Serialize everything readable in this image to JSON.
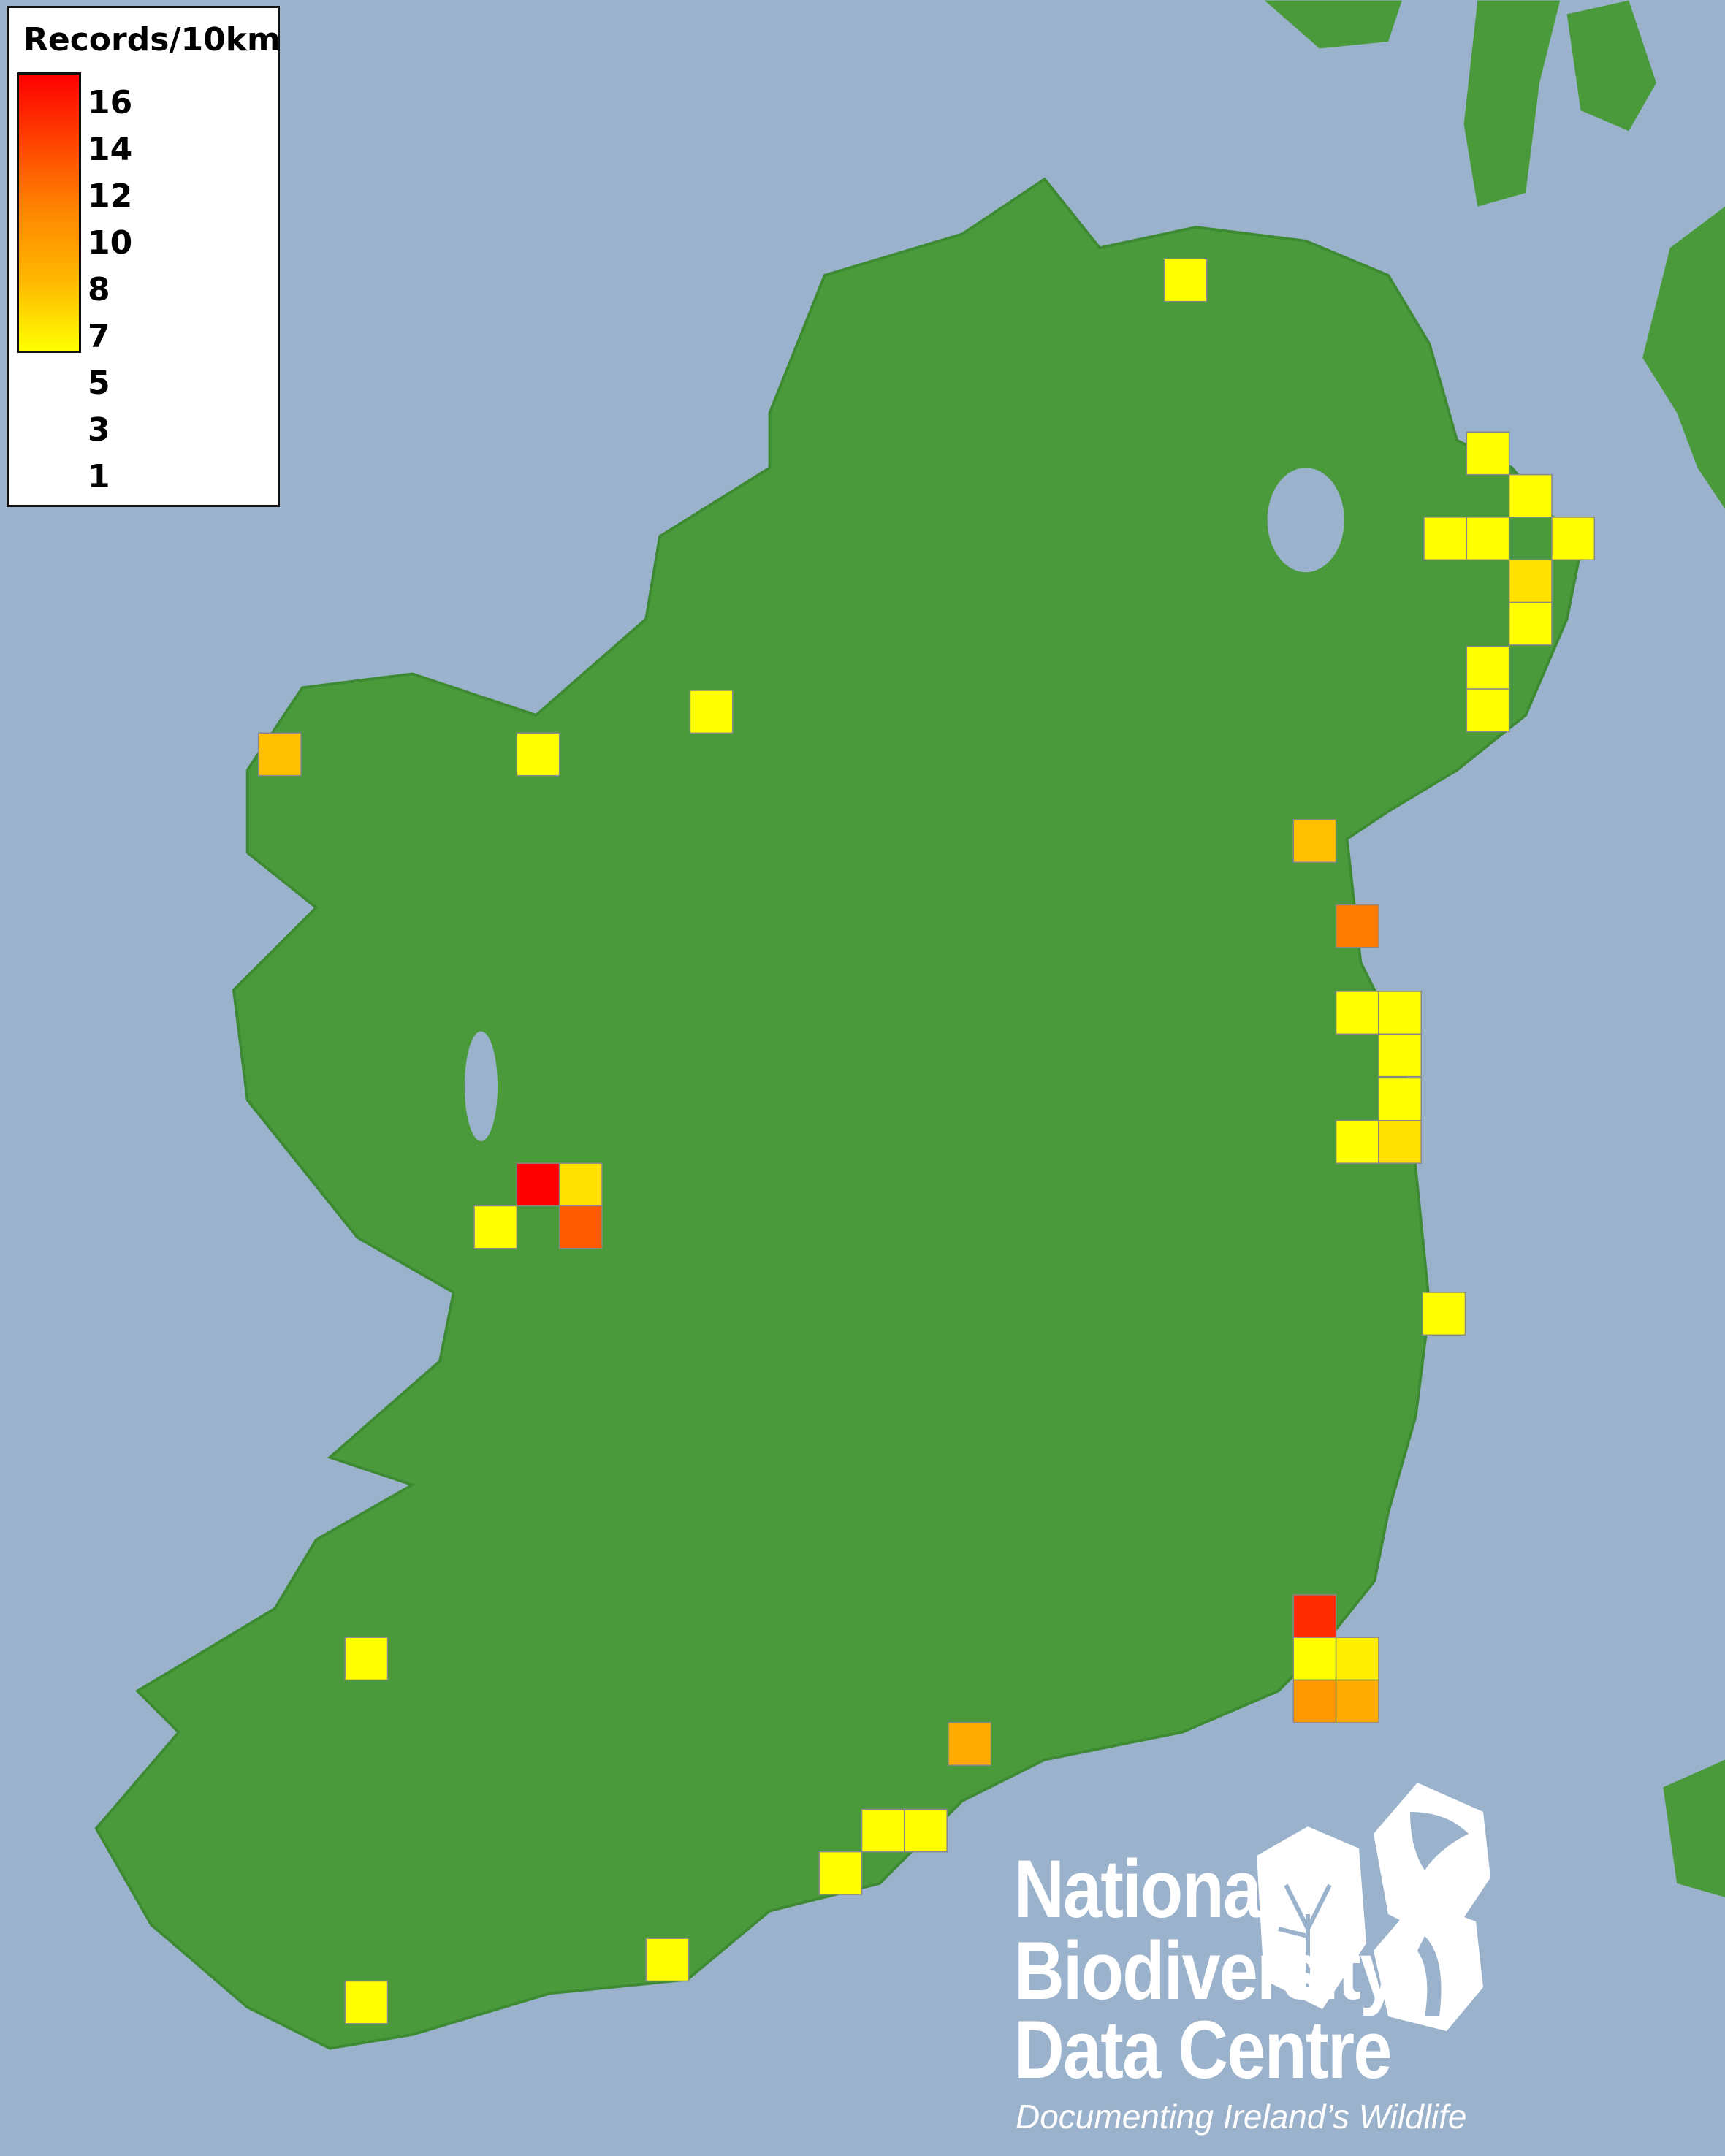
{
  "legend": {
    "title": "Records/10km",
    "ticks": [
      "16",
      "14",
      "12",
      "10",
      "8",
      "7",
      "5",
      "3",
      "1"
    ],
    "color_low": "#ffff00",
    "color_high": "#ff0000"
  },
  "map": {
    "sea_color": "#9ab2cc",
    "land_color": "#4a9a3c",
    "grid_squares": [
      {
        "row": "north-coast",
        "value": 1,
        "color": "#ffff00"
      },
      {
        "row": "antrim",
        "value": 1,
        "color": "#ffff00"
      },
      {
        "row": "antrim",
        "value": 1,
        "color": "#ffff00"
      },
      {
        "row": "belfast",
        "value": 1,
        "color": "#ffff00"
      },
      {
        "row": "belfast",
        "value": 1,
        "color": "#ffff00"
      },
      {
        "row": "belfast",
        "value": 1,
        "color": "#ffff00"
      },
      {
        "row": "down",
        "value": 3,
        "color": "#ffe000"
      },
      {
        "row": "down",
        "value": 1,
        "color": "#ffff00"
      },
      {
        "row": "down",
        "value": 1,
        "color": "#ffff00"
      },
      {
        "row": "down",
        "value": 1,
        "color": "#ffff00"
      },
      {
        "row": "mayo-west",
        "value": 5,
        "color": "#ffc000"
      },
      {
        "row": "mayo-north",
        "value": 1,
        "color": "#ffff00"
      },
      {
        "row": "sligo",
        "value": 1,
        "color": "#ffff00"
      },
      {
        "row": "louth",
        "value": 5,
        "color": "#ffc000"
      },
      {
        "row": "louth",
        "value": 9,
        "color": "#ff7a00"
      },
      {
        "row": "dublin",
        "value": 1,
        "color": "#ffff00"
      },
      {
        "row": "dublin",
        "value": 1,
        "color": "#ffff00"
      },
      {
        "row": "dublin",
        "value": 1,
        "color": "#ffff00"
      },
      {
        "row": "dublin",
        "value": 1,
        "color": "#ffff00"
      },
      {
        "row": "dublin",
        "value": 1,
        "color": "#ffff00"
      },
      {
        "row": "dublin",
        "value": 3,
        "color": "#ffe000"
      },
      {
        "row": "galway",
        "value": 16,
        "color": "#ff0000"
      },
      {
        "row": "galway",
        "value": 3,
        "color": "#ffe000"
      },
      {
        "row": "galway",
        "value": 1,
        "color": "#ffff00"
      },
      {
        "row": "galway",
        "value": 11,
        "color": "#ff5a00"
      },
      {
        "row": "wicklow",
        "value": 1,
        "color": "#ffff00"
      },
      {
        "row": "wexford",
        "value": 14,
        "color": "#ff2a00"
      },
      {
        "row": "wexford",
        "value": 1,
        "color": "#ffff00"
      },
      {
        "row": "wexford",
        "value": 2,
        "color": "#ffee00"
      },
      {
        "row": "wexford",
        "value": 7,
        "color": "#ff9800"
      },
      {
        "row": "wexford",
        "value": 6,
        "color": "#ffaa00"
      },
      {
        "row": "waterford",
        "value": 6,
        "color": "#ffaa00"
      },
      {
        "row": "kerry",
        "value": 1,
        "color": "#ffff00"
      },
      {
        "row": "cork",
        "value": 1,
        "color": "#ffff00"
      },
      {
        "row": "cork",
        "value": 1,
        "color": "#ffff00"
      },
      {
        "row": "cork",
        "value": 1,
        "color": "#ffff00"
      },
      {
        "row": "cork",
        "value": 1,
        "color": "#ffff00"
      },
      {
        "row": "kerry-south",
        "value": 1,
        "color": "#ffff00"
      }
    ]
  },
  "logo": {
    "line1": "National",
    "line2": "Biodiversity",
    "line3": "Data Centre",
    "tagline": "Documenting Ireland’s Wildlife"
  }
}
